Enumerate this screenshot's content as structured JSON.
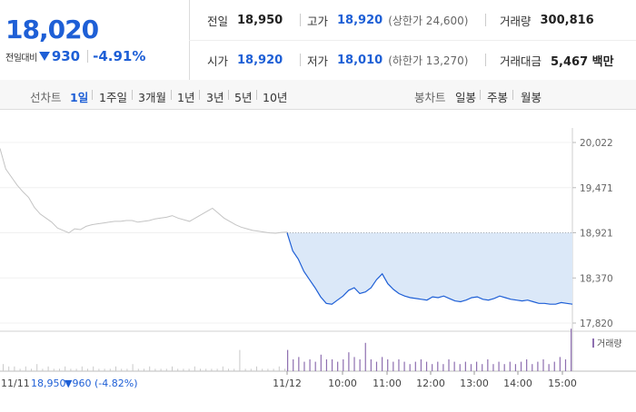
{
  "price": {
    "current": "18,020",
    "change_label": "전일대비",
    "change_value": "930",
    "change_rate": "-4.91%"
  },
  "info": {
    "prev_close_label": "전일",
    "prev_close": "18,950",
    "high_label": "고가",
    "high": "18,920",
    "upper_limit": "(상한가 24,600)",
    "volume_label": "거래량",
    "volume": "300,816",
    "open_label": "시가",
    "open": "18,920",
    "low_label": "저가",
    "low": "18,010",
    "lower_limit": "(하한가 13,270)",
    "amount_label": "거래대금",
    "amount": "5,467 백만"
  },
  "toolbar": {
    "line_label": "선차트",
    "line_periods": [
      "1일",
      "1주일",
      "3개월",
      "1년",
      "3년",
      "5년",
      "10년"
    ],
    "active_period": "1일",
    "candle_label": "봉차트",
    "candle_periods": [
      "일봉",
      "주봉",
      "월봉"
    ]
  },
  "colors": {
    "accent": "#1e5fd6",
    "down": "#1e5fd6",
    "prev_day_line": "#c4c4c4",
    "volume_bar": "#8e6fb0"
  },
  "chart_data": {
    "type": "line",
    "y_ticks": [
      "20,022",
      "19,471",
      "18,921",
      "18,370",
      "17,820"
    ],
    "ylim": [
      17820,
      20022
    ],
    "x_ticks": [
      "11/12",
      "10:00",
      "11:00",
      "12:00",
      "13:00",
      "14:00",
      "15:00"
    ],
    "volume_label": "거래량",
    "previous_day": {
      "label": "11/11",
      "close": "18,950",
      "change": "▼960",
      "rate": "(-4.82%)",
      "values": [
        19950,
        19700,
        19600,
        19500,
        19420,
        19350,
        19230,
        19150,
        19100,
        19050,
        18980,
        18950,
        18920,
        18970,
        18960,
        19000,
        19020,
        19030,
        19040,
        19050,
        19060,
        19060,
        19070,
        19070,
        19050,
        19060,
        19070,
        19090,
        19100,
        19110,
        19130,
        19100,
        19080,
        19060,
        19100,
        19140,
        19180,
        19220,
        19160,
        19100,
        19060,
        19020,
        18990,
        18970,
        18950,
        18940,
        18930,
        18920,
        18915,
        18925,
        18930
      ]
    },
    "today": {
      "label": "11/12",
      "reference": 18921,
      "values": [
        18920,
        18700,
        18600,
        18450,
        18350,
        18250,
        18140,
        18060,
        18050,
        18100,
        18150,
        18220,
        18250,
        18180,
        18200,
        18250,
        18350,
        18420,
        18300,
        18230,
        18180,
        18150,
        18130,
        18120,
        18110,
        18100,
        18140,
        18130,
        18150,
        18120,
        18090,
        18080,
        18100,
        18130,
        18140,
        18110,
        18100,
        18120,
        18150,
        18130,
        18110,
        18100,
        18090,
        18100,
        18080,
        18060,
        18060,
        18050,
        18050,
        18070,
        18060,
        18050
      ]
    },
    "volume": {
      "previous_day": [
        3,
        2,
        2,
        1,
        2,
        1,
        3,
        1,
        2,
        1,
        1,
        2,
        1,
        1,
        2,
        1,
        2,
        1,
        1,
        1,
        2,
        1,
        1,
        3,
        1,
        1,
        2,
        1,
        1,
        1,
        2,
        1,
        1,
        1,
        2,
        1,
        1,
        1,
        1,
        2,
        1,
        1,
        9,
        1,
        1,
        2,
        1,
        1,
        1,
        2,
        1
      ],
      "today": [
        9,
        5,
        6,
        4,
        5,
        4,
        7,
        5,
        5,
        4,
        5,
        8,
        6,
        5,
        12,
        5,
        4,
        6,
        5,
        4,
        5,
        4,
        3,
        4,
        5,
        4,
        3,
        4,
        3,
        5,
        4,
        3,
        4,
        3,
        4,
        3,
        5,
        3,
        4,
        3,
        4,
        3,
        4,
        5,
        3,
        4,
        5,
        3,
        4,
        6,
        5,
        18
      ]
    }
  }
}
